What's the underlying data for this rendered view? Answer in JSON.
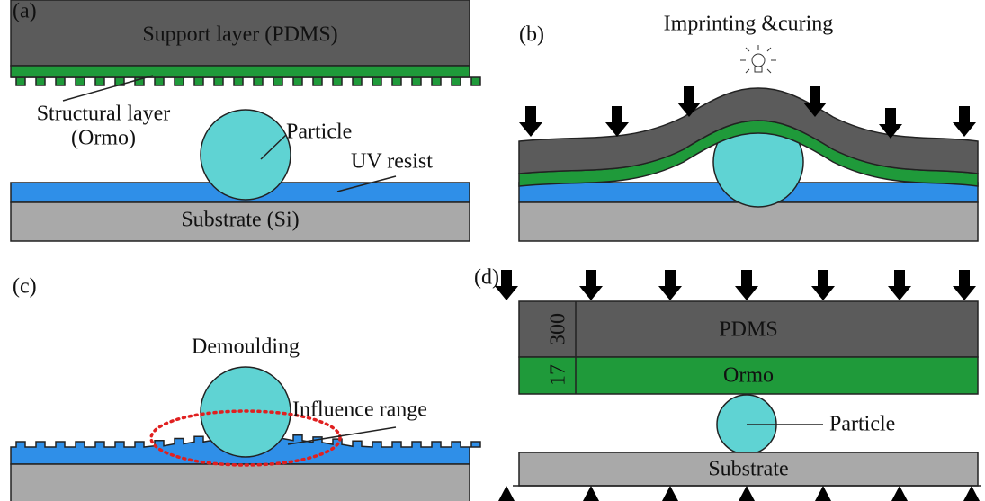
{
  "panel_a": {
    "label": "(a)",
    "support": "Support layer (PDMS)",
    "structural_1": "Structural layer",
    "structural_2": "(Ormo)",
    "particle": "Particle",
    "resist": "UV resist",
    "substrate": "Substrate (Si)"
  },
  "panel_b": {
    "label": "(b)",
    "title": "Imprinting &curing"
  },
  "panel_c": {
    "label": "(c)",
    "title": "Demoulding",
    "influence": "Influence range"
  },
  "panel_d": {
    "label": "(d)",
    "dim_pdms": "300",
    "dim_ormo": "17",
    "pdms": "PDMS",
    "ormo": "Ormo",
    "particle": "Particle",
    "substrate": "Substrate"
  }
}
